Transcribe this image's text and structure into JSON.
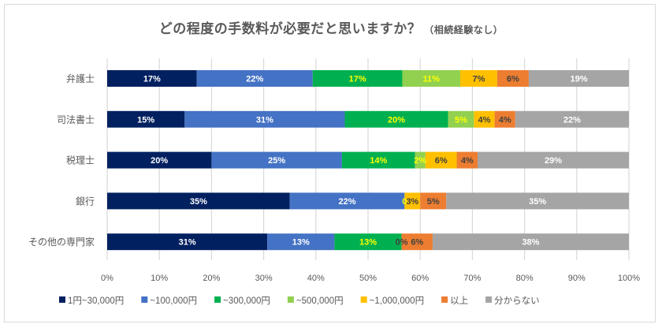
{
  "chart_data": {
    "type": "bar",
    "orientation": "horizontal",
    "stacked": "percent",
    "title": "どの程度の手数料が必要だと思いますか？",
    "subtitle": "（相続経験なし）",
    "xlabel": "",
    "ylabel": "",
    "xlim": [
      0,
      100
    ],
    "x_ticks": [
      "0%",
      "10%",
      "20%",
      "30%",
      "40%",
      "50%",
      "60%",
      "70%",
      "80%",
      "90%",
      "100%"
    ],
    "grid": true,
    "legend_position": "bottom",
    "categories": [
      "弁護士",
      "司法書士",
      "税理士",
      "銀行",
      "その他の専門家"
    ],
    "series": [
      {
        "name": "1円~30,000円",
        "color": "#002060",
        "label_color": "#ffffff",
        "values": [
          17,
          15,
          20,
          35,
          31
        ]
      },
      {
        "name": "~100,000円",
        "color": "#4472c4",
        "label_color": "#ffffff",
        "values": [
          22,
          31,
          25,
          22,
          13
        ]
      },
      {
        "name": "~300,000円",
        "color": "#00b050",
        "label_color": "#ffff00",
        "values": [
          17,
          20,
          14,
          0,
          13
        ]
      },
      {
        "name": "~500,000円",
        "color": "#92d050",
        "label_color": "#ffff00",
        "values": [
          11,
          5,
          2,
          0,
          0
        ]
      },
      {
        "name": "~1,000,000円",
        "color": "#ffc000",
        "label_color": "#404040",
        "values": [
          7,
          4,
          6,
          3,
          0
        ]
      },
      {
        "name": "以上",
        "color": "#ed7d31",
        "label_color": "#404040",
        "values": [
          6,
          4,
          4,
          5,
          6
        ]
      },
      {
        "name": "分からない",
        "color": "#a5a5a5",
        "label_color": "#ffffff",
        "values": [
          19,
          22,
          29,
          35,
          38
        ]
      }
    ],
    "data_labels": [
      [
        "17%",
        "22%",
        "17%",
        "11%",
        "7%",
        "6%",
        "19%"
      ],
      [
        "15%",
        "31%",
        "20%",
        "5%",
        "4%",
        "4%",
        "22%"
      ],
      [
        "20%",
        "25%",
        "14%",
        "2%",
        "6%",
        "4%",
        "29%"
      ],
      [
        "35%",
        "22%",
        "",
        "0",
        "3%",
        "5%",
        "35%"
      ],
      [
        "31%",
        "13%",
        "13%",
        "",
        "0%",
        "6%",
        "38%"
      ]
    ]
  }
}
